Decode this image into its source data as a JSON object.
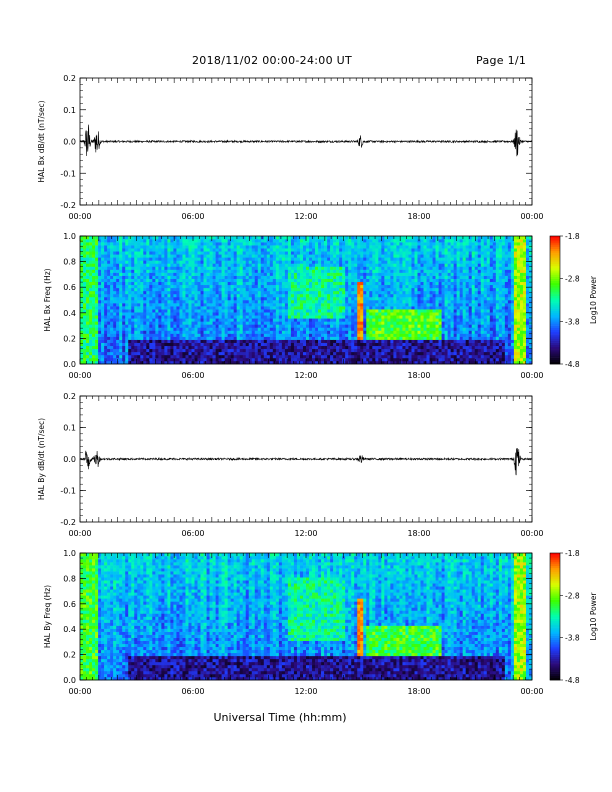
{
  "header": {
    "date_range": "2018/11/02  00:00-24:00 UT",
    "page": "Page 1/1"
  },
  "x_axis": {
    "label": "Universal Time (hh:mm)",
    "ticks": [
      "00:00",
      "06:00",
      "12:00",
      "18:00",
      "00:00"
    ],
    "range_hours": [
      0,
      24
    ]
  },
  "colorbar": {
    "label": "Log10 Power",
    "ticks": [
      "-1.8",
      "-2.8",
      "-3.8",
      "-4.8"
    ],
    "range": [
      -4.8,
      -1.8
    ],
    "colors": [
      "#000000",
      "#2b0a7a",
      "#1f3dff",
      "#00b8ff",
      "#00ffb0",
      "#3cff00",
      "#d8ff00",
      "#ff9c00",
      "#ff0000"
    ]
  },
  "chart_data": [
    {
      "type": "line",
      "title": "",
      "ylabel": "HAL Bx dB/dt (nT/sec)",
      "xlabel": "",
      "ylim": [
        -0.2,
        0.2
      ],
      "yticks": [
        "0.2",
        "0.1",
        "0.0",
        "-0.1",
        "-0.2"
      ],
      "bursts": [
        {
          "t_hours": 0.4,
          "amplitude": 0.07
        },
        {
          "t_hours": 0.9,
          "amplitude": 0.05
        },
        {
          "t_hours": 14.9,
          "amplitude": 0.02
        },
        {
          "t_hours": 23.2,
          "amplitude": 0.05
        }
      ],
      "baseline_noise": 0.003
    },
    {
      "type": "heatmap",
      "title": "",
      "ylabel": "HAL Bx Freq (Hz)",
      "xlabel": "",
      "ylim": [
        0,
        1.0
      ],
      "yticks": [
        "1.0",
        "0.8",
        "0.6",
        "0.4",
        "0.2",
        "0.0"
      ],
      "zlabel": "Log10 Power",
      "zlim": [
        -4.8,
        -1.8
      ],
      "features": [
        {
          "kind": "band",
          "t0_hours": 0.0,
          "t1_hours": 1.0,
          "f0": 0.0,
          "f1": 1.0,
          "level": 0.55
        },
        {
          "kind": "band",
          "t0_hours": 23.0,
          "t1_hours": 23.6,
          "f0": 0.0,
          "f1": 1.0,
          "level": 0.7
        },
        {
          "kind": "streak",
          "t_hours": 14.9,
          "f0": 0.2,
          "f1": 0.65,
          "level": 0.95
        },
        {
          "kind": "blob",
          "t0_hours": 15.2,
          "t1_hours": 19.2,
          "f0": 0.15,
          "f1": 0.42,
          "level": 0.62
        },
        {
          "kind": "blob",
          "t0_hours": 11.0,
          "t1_hours": 14.0,
          "f0": 0.35,
          "f1": 0.75,
          "level": 0.5
        },
        {
          "kind": "dark",
          "t0_hours": 2.5,
          "t1_hours": 22.5,
          "f0": 0.0,
          "f1": 0.2,
          "level": 0.05
        }
      ]
    },
    {
      "type": "line",
      "title": "",
      "ylabel": "HAL By dB/dt (nT/sec)",
      "xlabel": "",
      "ylim": [
        -0.2,
        0.2
      ],
      "yticks": [
        "0.2",
        "0.1",
        "0.0",
        "-0.1",
        "-0.2"
      ],
      "bursts": [
        {
          "t_hours": 0.4,
          "amplitude": 0.05
        },
        {
          "t_hours": 0.9,
          "amplitude": 0.03
        },
        {
          "t_hours": 14.9,
          "amplitude": 0.015
        },
        {
          "t_hours": 23.2,
          "amplitude": 0.06
        }
      ],
      "baseline_noise": 0.003
    },
    {
      "type": "heatmap",
      "title": "",
      "ylabel": "HAL By Freq (Hz)",
      "xlabel": "",
      "ylim": [
        0,
        1.0
      ],
      "yticks": [
        "1.0",
        "0.8",
        "0.6",
        "0.4",
        "0.2",
        "0.0"
      ],
      "zlabel": "Log10 Power",
      "zlim": [
        -4.8,
        -1.8
      ],
      "features": [
        {
          "kind": "band",
          "t0_hours": 0.0,
          "t1_hours": 1.0,
          "f0": 0.0,
          "f1": 1.0,
          "level": 0.6
        },
        {
          "kind": "band",
          "t0_hours": 23.0,
          "t1_hours": 23.6,
          "f0": 0.0,
          "f1": 1.0,
          "level": 0.7
        },
        {
          "kind": "streak",
          "t_hours": 14.9,
          "f0": 0.2,
          "f1": 0.65,
          "level": 0.95
        },
        {
          "kind": "blob",
          "t0_hours": 15.2,
          "t1_hours": 19.2,
          "f0": 0.12,
          "f1": 0.42,
          "level": 0.6
        },
        {
          "kind": "blob",
          "t0_hours": 11.0,
          "t1_hours": 14.0,
          "f0": 0.3,
          "f1": 0.8,
          "level": 0.5
        },
        {
          "kind": "dark",
          "t0_hours": 2.5,
          "t1_hours": 22.5,
          "f0": 0.0,
          "f1": 0.2,
          "level": 0.05
        }
      ]
    }
  ]
}
